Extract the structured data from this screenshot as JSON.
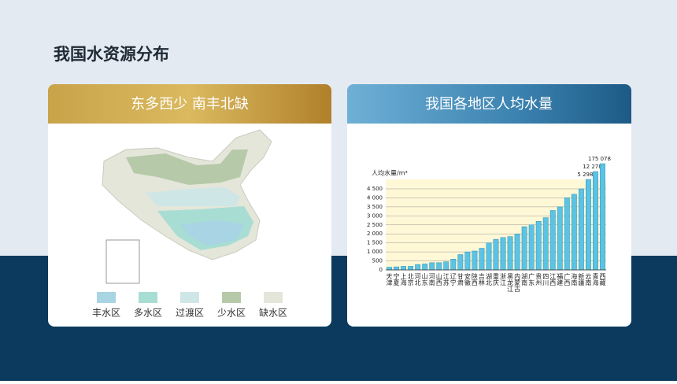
{
  "header": {
    "title": "我国水资源分布"
  },
  "left_card": {
    "title": "东多西少  南丰北缺",
    "legend": [
      {
        "label": "丰水区",
        "color": "#a9d4e4"
      },
      {
        "label": "多水区",
        "color": "#a8ddd3"
      },
      {
        "label": "过渡区",
        "color": "#cfe6e6"
      },
      {
        "label": "少水区",
        "color": "#b6c9a9"
      },
      {
        "label": "缺水区",
        "color": "#e4e6da"
      }
    ]
  },
  "right_card": {
    "title": "我国各地区人均水量"
  },
  "chart_data": {
    "type": "bar",
    "y_label": "人均水量/m³",
    "categories": [
      "天津",
      "宁夏",
      "上海",
      "北京",
      "河北",
      "山东",
      "河南",
      "山西",
      "江苏",
      "辽宁",
      "甘肃",
      "安徽",
      "陕西",
      "吉林",
      "湖北",
      "重庆",
      "浙江",
      "黑龙江",
      "内蒙古",
      "湖南",
      "广东",
      "贵州",
      "四川",
      "江西",
      "福建",
      "广西",
      "海南",
      "新疆",
      "云南",
      "青海",
      "西藏"
    ],
    "values": [
      150,
      170,
      200,
      200,
      300,
      330,
      400,
      400,
      450,
      600,
      850,
      1000,
      1050,
      1200,
      1500,
      1700,
      1800,
      1850,
      2000,
      2400,
      2500,
      2700,
      2900,
      3300,
      3500,
      4000,
      4200,
      4500,
      5298,
      12278,
      175078
    ],
    "value_labels": [
      null,
      null,
      null,
      null,
      null,
      null,
      null,
      null,
      null,
      null,
      null,
      null,
      null,
      null,
      null,
      null,
      null,
      null,
      null,
      null,
      null,
      null,
      null,
      null,
      null,
      null,
      null,
      null,
      "5 298",
      "12 278",
      "175 078"
    ],
    "color": "#5cc3e4",
    "ylim": [
      0,
      4500
    ],
    "yticks": [
      0,
      500,
      {
        "value": 1000,
        "label": "1 000"
      },
      {
        "value": 1500,
        "label": "1 500"
      },
      {
        "value": 2000,
        "label": "2 000"
      },
      {
        "value": 2500,
        "label": "2 500"
      },
      {
        "value": 3000,
        "label": "3 000"
      },
      {
        "value": 3500,
        "label": "3 500"
      },
      {
        "value": 4000,
        "label": "4 000"
      },
      {
        "value": 4500,
        "label": "4 500"
      }
    ],
    "grid": true
  }
}
